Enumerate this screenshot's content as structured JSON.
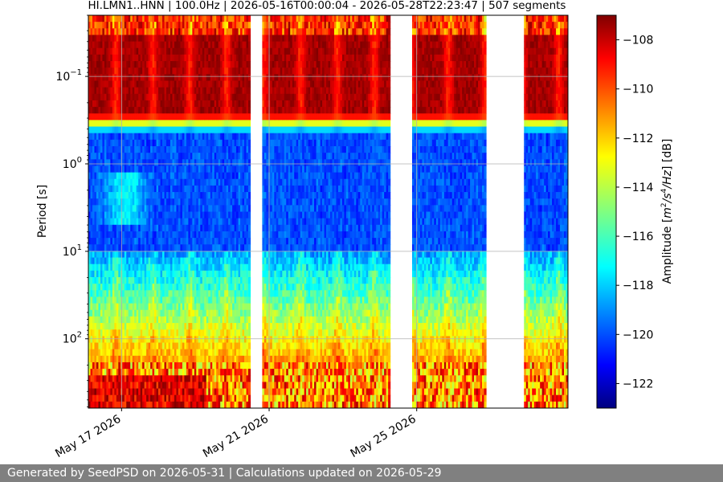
{
  "chart_data": {
    "type": "heatmap",
    "title": "HI.LMN1..HNN | 100.0Hz | 2026-05-16T00:00:04 - 2026-05-28T22:23:47 | 507 segments",
    "ylabel": "Period [s]",
    "y_scale": "log",
    "y_inverted": true,
    "ylim": [
      0.02,
      620
    ],
    "y_ticks": [
      {
        "value": 0.1,
        "base": "10",
        "exp": "−1"
      },
      {
        "value": 1,
        "base": "10",
        "exp": "0"
      },
      {
        "value": 10,
        "base": "10",
        "exp": "1"
      },
      {
        "value": 100,
        "base": "10",
        "exp": "2"
      }
    ],
    "x_ticks": [
      "May 17 2026",
      "May 21 2026",
      "May 25 2026"
    ],
    "x_range_days": [
      "2026-05-16T00:00:04",
      "2026-05-28T22:23:47"
    ],
    "x_tick_days": [
      0.9,
      4.9,
      8.9
    ],
    "data_gaps_days": [
      [
        4.4,
        4.7
      ],
      [
        8.2,
        8.8
      ],
      [
        10.8,
        11.8
      ]
    ],
    "grid": true,
    "colorbar": {
      "label_prefix": "Amplitude [",
      "label_unit_m": "m",
      "label_unit_exp1": "2",
      "label_unit_mid": "/s",
      "label_unit_exp2": "4",
      "label_unit_hz": "/Hz",
      "label_suffix": "] [dB]",
      "colormap": "jet",
      "range": [
        -123,
        -107
      ],
      "ticks": [
        "−108",
        "−110",
        "−112",
        "−114",
        "−116",
        "−118",
        "−120",
        "−122"
      ],
      "tick_values": [
        -108,
        -110,
        -112,
        -114,
        -116,
        -118,
        -120,
        -122
      ]
    },
    "segments": 507
  },
  "footer": {
    "text": "Generated by SeedPSD on 2026-05-31 | Calculations updated on 2026-05-29"
  }
}
